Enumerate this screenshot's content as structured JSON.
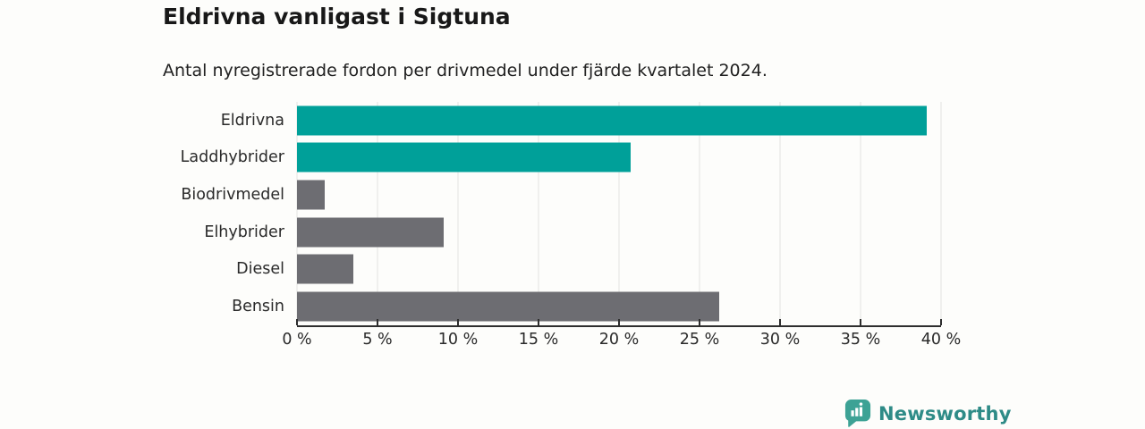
{
  "header": {
    "title": "Eldrivna vanligast i Sigtuna",
    "subtitle": "Antal nyregistrerade fordon per drivmedel under fjärde kvartalet 2024."
  },
  "chart_data": {
    "type": "bar",
    "orientation": "horizontal",
    "title": "Eldrivna vanligast i Sigtuna",
    "subtitle": "Antal nyregistrerade fordon per drivmedel under fjärde kvartalet 2024.",
    "categories": [
      "Eldrivna",
      "Laddhybrider",
      "Biodrivmedel",
      "Elhybrider",
      "Diesel",
      "Bensin"
    ],
    "values": [
      39.1,
      20.7,
      1.7,
      9.1,
      3.5,
      26.2
    ],
    "unit": "%",
    "bar_colors": [
      "#00a099",
      "#00a099",
      "#6d6d72",
      "#6d6d72",
      "#6d6d72",
      "#6d6d72"
    ],
    "xlabel": "",
    "ylabel": "",
    "xlim": [
      0,
      40
    ],
    "x_ticks": [
      0,
      5,
      10,
      15,
      20,
      25,
      30,
      35,
      40
    ],
    "x_tick_labels": [
      "0 %",
      "5 %",
      "10 %",
      "15 %",
      "20 %",
      "25 %",
      "30 %",
      "35 %",
      "40 %"
    ],
    "grid": "vertical-gridlines",
    "legend": "none"
  },
  "footer": {
    "brand": "Newsworthy",
    "brand_color": "#2e8b87",
    "logo_color": "#3da295"
  },
  "colors": {
    "accent_teal": "#00a099",
    "neutral_gray": "#6d6d72",
    "gridline": "#e2e2e2",
    "axis": "#2e2e2e",
    "background": "#fdfdfb"
  }
}
